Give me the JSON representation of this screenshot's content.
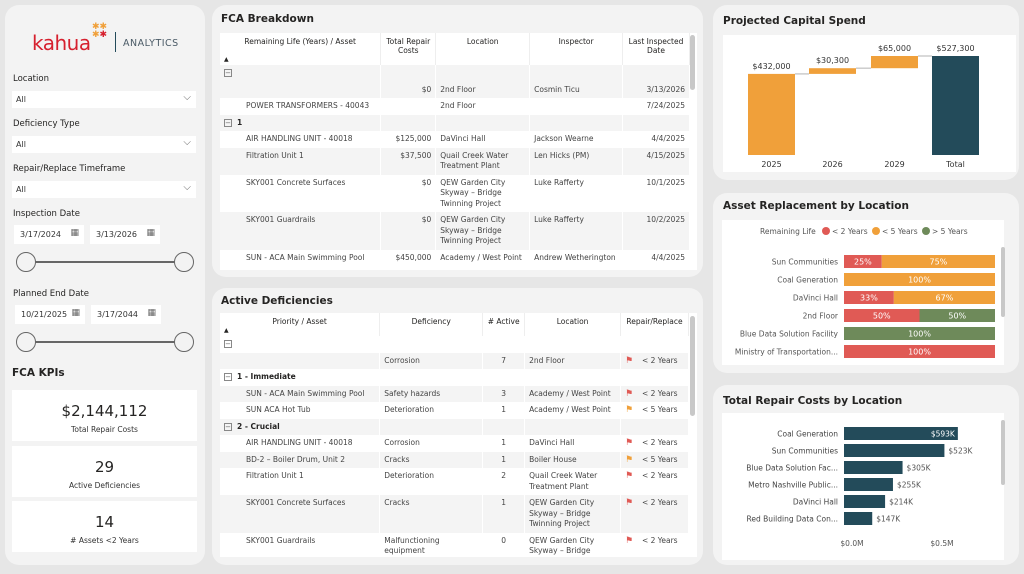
{
  "brand": {
    "logo": "kahua",
    "product": "ANALYTICS"
  },
  "filters": {
    "location": {
      "label": "Location",
      "value": "All"
    },
    "deficiency_type": {
      "label": "Deficiency Type",
      "value": "All"
    },
    "timeframe": {
      "label": "Repair/Replace Timeframe",
      "value": "All"
    },
    "inspection_date": {
      "label": "Inspection Date",
      "from": "3/17/2024",
      "to": "3/13/2026"
    },
    "planned_end_date": {
      "label": "Planned End Date",
      "from": "10/21/2025",
      "to": "3/17/2044"
    }
  },
  "kpis": {
    "title": "FCA KPIs",
    "items": [
      {
        "value": "$2,144,112",
        "caption": "Total Repair Costs"
      },
      {
        "value": "29",
        "caption": "Active Deficiencies"
      },
      {
        "value": "14",
        "caption": "# Assets <2 Years"
      }
    ]
  },
  "fca": {
    "title": "FCA Breakdown",
    "columns": [
      "Remaining Life (Years) / Asset",
      "Total Repair Costs",
      "Location",
      "Inspector",
      "Last Inspected Date"
    ],
    "rows": [
      {
        "type": "group",
        "label": ""
      },
      {
        "asset": "",
        "cost": "$0",
        "location": "2nd Floor",
        "inspector": "Cosmin Ticu",
        "date": "3/13/2026"
      },
      {
        "asset": "POWER TRANSFORMERS - 40043",
        "cost": "",
        "location": "2nd Floor",
        "inspector": "",
        "date": "7/24/2025"
      },
      {
        "type": "group",
        "label": "1"
      },
      {
        "asset": "AIR HANDLING UNIT - 40018",
        "cost": "$125,000",
        "location": "DaVinci Hall",
        "inspector": "Jackson Wearne",
        "date": "4/4/2025"
      },
      {
        "asset": "Filtration Unit 1",
        "cost": "$37,500",
        "location": "Quail Creek Water Treatment Plant",
        "inspector": "Len Hicks (PM)",
        "date": "4/15/2025"
      },
      {
        "asset": "SKY001 Concrete Surfaces",
        "cost": "$0",
        "location": "QEW Garden City Skyway – Bridge Twinning Project",
        "inspector": "Luke Rafferty",
        "date": "10/1/2025"
      },
      {
        "asset": "SKY001 Guardrails",
        "cost": "$0",
        "location": "QEW Garden City Skyway – Bridge Twinning Project",
        "inspector": "Luke Rafferty",
        "date": "10/2/2025"
      },
      {
        "asset": "SUN - ACA Main Swimming Pool",
        "cost": "$450,000",
        "location": "Academy / West Point",
        "inspector": "Andrew Wetherington",
        "date": "4/4/2025"
      }
    ]
  },
  "deficiencies": {
    "title": "Active Deficiencies",
    "columns": [
      "Priority / Asset",
      "Deficiency",
      "# Active",
      "Location",
      "Repair/Replace"
    ],
    "rows": [
      {
        "type": "group",
        "label": ""
      },
      {
        "asset": "",
        "deficiency": "Corrosion",
        "active": "7",
        "location": "2nd Floor",
        "flag": "red",
        "timeframe": "< 2 Years"
      },
      {
        "type": "group",
        "label": "1 - Immediate"
      },
      {
        "asset": "SUN - ACA Main Swimming Pool",
        "deficiency": "Safety hazards",
        "active": "3",
        "location": "Academy / West Point",
        "flag": "red",
        "timeframe": "< 2 Years"
      },
      {
        "asset": "SUN ACA Hot Tub",
        "deficiency": "Deterioration",
        "active": "1",
        "location": "Academy / West Point",
        "flag": "orange",
        "timeframe": "< 5 Years"
      },
      {
        "type": "group",
        "label": "2 - Crucial"
      },
      {
        "asset": "AIR HANDLING UNIT - 40018",
        "deficiency": "Corrosion",
        "active": "1",
        "location": "DaVinci Hall",
        "flag": "red",
        "timeframe": "< 2 Years"
      },
      {
        "asset": "BD-2 – Boiler Drum, Unit 2",
        "deficiency": "Cracks",
        "active": "1",
        "location": "Boiler House",
        "flag": "orange",
        "timeframe": "< 5 Years"
      },
      {
        "asset": "Filtration Unit 1",
        "deficiency": "Deterioration",
        "active": "2",
        "location": "Quail Creek Water Treatment Plant",
        "flag": "red",
        "timeframe": "< 2 Years"
      },
      {
        "asset": "SKY001 Concrete Surfaces",
        "deficiency": "Cracks",
        "active": "1",
        "location": "QEW Garden City Skyway – Bridge Twinning Project",
        "flag": "red",
        "timeframe": "< 2 Years"
      },
      {
        "asset": "SKY001 Guardrails",
        "deficiency": "Malfunctioning equipment",
        "active": "0",
        "location": "QEW Garden City Skyway – Bridge",
        "flag": "red",
        "timeframe": "< 2 Years"
      }
    ]
  },
  "colors": {
    "red": "#e05a55",
    "orange": "#f0a03a",
    "green": "#6e8a5a",
    "teal": "#234b5a"
  },
  "chart_data": [
    {
      "type": "waterfall",
      "title": "Projected Capital Spend",
      "categories": [
        "2025",
        "2026",
        "2029",
        "Total"
      ],
      "values": [
        432000,
        30300,
        65000,
        527300
      ],
      "labels": [
        "$432,000",
        "$30,300",
        "$65,000",
        "$527,300"
      ]
    },
    {
      "type": "bar",
      "orientation": "horizontal",
      "stacked": "100%",
      "title": "Asset Replacement by Location",
      "legend": {
        "title": "Remaining Life",
        "position": "top"
      },
      "categories": [
        "Sun Communities",
        "Coal Generation",
        "DaVinci Hall",
        "2nd Floor",
        "Blue Data Solution Facility",
        "Ministry of Transportation..."
      ],
      "series": [
        {
          "name": "< 2 Years",
          "color": "#e05a55",
          "values": [
            25,
            0,
            33,
            50,
            0,
            100
          ]
        },
        {
          "name": "< 5 Years",
          "color": "#f0a03a",
          "values": [
            75,
            100,
            67,
            0,
            0,
            0
          ]
        },
        {
          "name": "> 5 Years",
          "color": "#6e8a5a",
          "values": [
            0,
            0,
            0,
            50,
            100,
            0
          ]
        }
      ]
    },
    {
      "type": "bar",
      "orientation": "horizontal",
      "title": "Total Repair Costs by Location",
      "categories": [
        "Coal Generation",
        "Sun Communities",
        "Blue Data Solution Fac...",
        "Metro Nashville Public...",
        "DaVinci Hall",
        "Red Building Data Con..."
      ],
      "values": [
        593,
        523,
        305,
        255,
        214,
        147
      ],
      "labels": [
        "$593K",
        "$523K",
        "$305K",
        "$255K",
        "$214K",
        "$147K"
      ],
      "unit": "thousand USD",
      "xticks": [
        "$0.0M",
        "$0.5M"
      ],
      "xlim": [
        0,
        0.5
      ]
    }
  ]
}
